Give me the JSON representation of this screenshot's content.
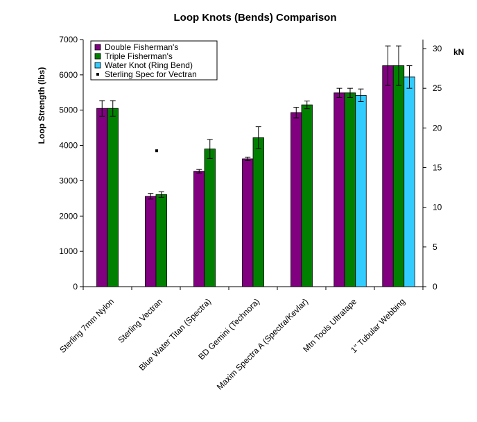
{
  "chart_data": {
    "type": "bar",
    "title": "Loop Knots (Bends) Comparison",
    "ylabel": "Loop Strength (lbs)",
    "y2label": "kN",
    "ylim": [
      0,
      7000
    ],
    "y2lim": [
      0,
      31.14
    ],
    "yticks": [
      "0",
      "1000",
      "2000",
      "3000",
      "4000",
      "5000",
      "6000",
      "7000"
    ],
    "y2ticks": [
      "0",
      "5",
      "10",
      "15",
      "20",
      "25",
      "30"
    ],
    "categories": [
      "Sterling 7mm Nylon",
      "Sterling Vectran",
      "Blue Water Titan (Spectra)",
      "BD Gemini (Technora)",
      "Maxim Spectra A (Spectra/Kevlar)",
      "Mtn Tools Ultratape",
      "1\" Tubular Webbing"
    ],
    "series": [
      {
        "name": "Double Fisherman's",
        "color": "#800080",
        "values": [
          5050,
          2560,
          3270,
          3620,
          4930,
          5490,
          6260
        ],
        "errors": [
          220,
          80,
          50,
          50,
          150,
          130,
          560
        ]
      },
      {
        "name": "Triple Fisherman's",
        "color": "#008000",
        "values": [
          5050,
          2610,
          3900,
          4220,
          5150,
          5490,
          6260
        ],
        "errors": [
          220,
          80,
          270,
          310,
          110,
          130,
          560
        ]
      },
      {
        "name": "Water Knot (Ring Bend)",
        "color": "#33CCFF",
        "values": [
          null,
          null,
          null,
          null,
          null,
          5420,
          5940
        ],
        "errors": [
          null,
          null,
          null,
          null,
          null,
          180,
          320
        ]
      }
    ],
    "markers": [
      {
        "name": "Sterling Spec for Vectran",
        "category": "Sterling Vectran",
        "value": 3850,
        "color": "#000000"
      }
    ],
    "legend_position": "top-left",
    "grid": false
  }
}
